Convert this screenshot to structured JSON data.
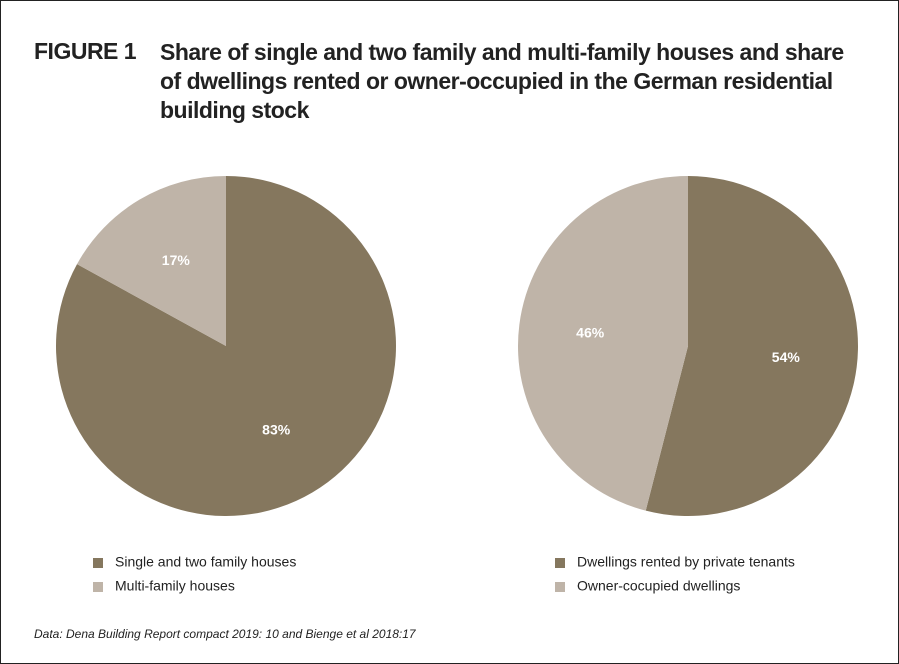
{
  "figure_label": "FIGURE 1",
  "title": "Share of single and two family and multi-family houses and share of dwellings rented or owner-occupied in the German residential building stock",
  "source": "Data: Dena Building Report compact 2019: 10 and Bienge et al 2018:17",
  "chart_data": [
    {
      "type": "pie",
      "categories": [
        "Single and two family houses",
        "Multi-family houses"
      ],
      "values": [
        83,
        17
      ],
      "value_labels": [
        "83%",
        "17%"
      ],
      "colors": [
        "#85775e",
        "#bfb4a8"
      ]
    },
    {
      "type": "pie",
      "categories": [
        "Dwellings rented by private tenants",
        "Owner-cocupied dwellings"
      ],
      "values": [
        54,
        46
      ],
      "value_labels": [
        "54%",
        "46%"
      ],
      "colors": [
        "#85775e",
        "#bfb4a8"
      ]
    }
  ]
}
